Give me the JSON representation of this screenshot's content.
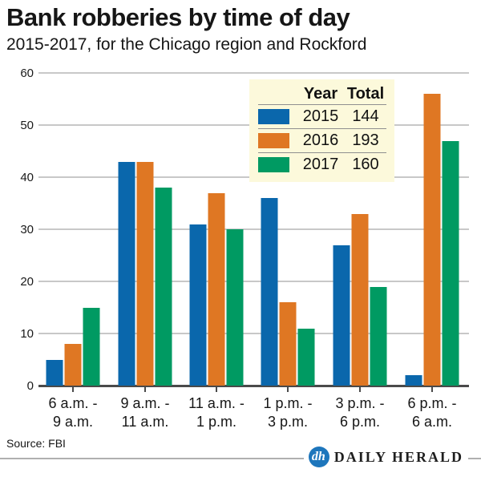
{
  "header": {
    "title": "Bank robberies by time of day",
    "subtitle": "2015-2017, for the Chicago region and Rockford"
  },
  "chart_data": {
    "type": "bar",
    "title": "Bank robberies by time of day",
    "subtitle": "2015-2017, for the Chicago region and Rockford",
    "categories": [
      "6 a.m. - 9 a.m.",
      "9 a.m. - 11 a.m.",
      "11 a.m. - 1 p.m.",
      "1 p.m. - 3 p.m.",
      "3 p.m. - 6 p.m.",
      "6 p.m. - 6 a.m."
    ],
    "category_labels": [
      [
        "6 a.m. -",
        "9 a.m."
      ],
      [
        "9 a.m. -",
        "11 a.m."
      ],
      [
        "11 a.m. -",
        "1 p.m."
      ],
      [
        "1 p.m. -",
        "3 p.m."
      ],
      [
        "3 p.m. -",
        "6 p.m."
      ],
      [
        "6 p.m. -",
        "6 a.m."
      ]
    ],
    "series": [
      {
        "name": "2015",
        "total": 144,
        "color": "#0a67ac",
        "values": [
          5,
          43,
          31,
          36,
          27,
          2
        ]
      },
      {
        "name": "2016",
        "total": 193,
        "color": "#df7723",
        "values": [
          8,
          43,
          37,
          16,
          33,
          56
        ]
      },
      {
        "name": "2017",
        "total": 160,
        "color": "#009a62",
        "values": [
          15,
          38,
          30,
          11,
          19,
          47
        ]
      }
    ],
    "ylim": [
      0,
      60
    ],
    "yticks": [
      0,
      10,
      20,
      30,
      40,
      50,
      60
    ],
    "grid": true,
    "legend": {
      "columns": [
        "Year",
        "Total"
      ],
      "position": "top-right",
      "background": "#fcf9db"
    }
  },
  "legend": {
    "header_year": "Year",
    "header_total": "Total"
  },
  "footer": {
    "source": "Source: FBI",
    "brand": {
      "monogram": "dh",
      "name": "DAILY HERALD",
      "circle_color": "#1d76bc"
    }
  },
  "colors": {
    "bar_2015": "#0a67ac",
    "bar_2016": "#df7723",
    "bar_2017": "#009a62",
    "gridline": "#c8c8c8",
    "baseline": "#4a4a4a",
    "legend_bg": "#fcf9db"
  }
}
